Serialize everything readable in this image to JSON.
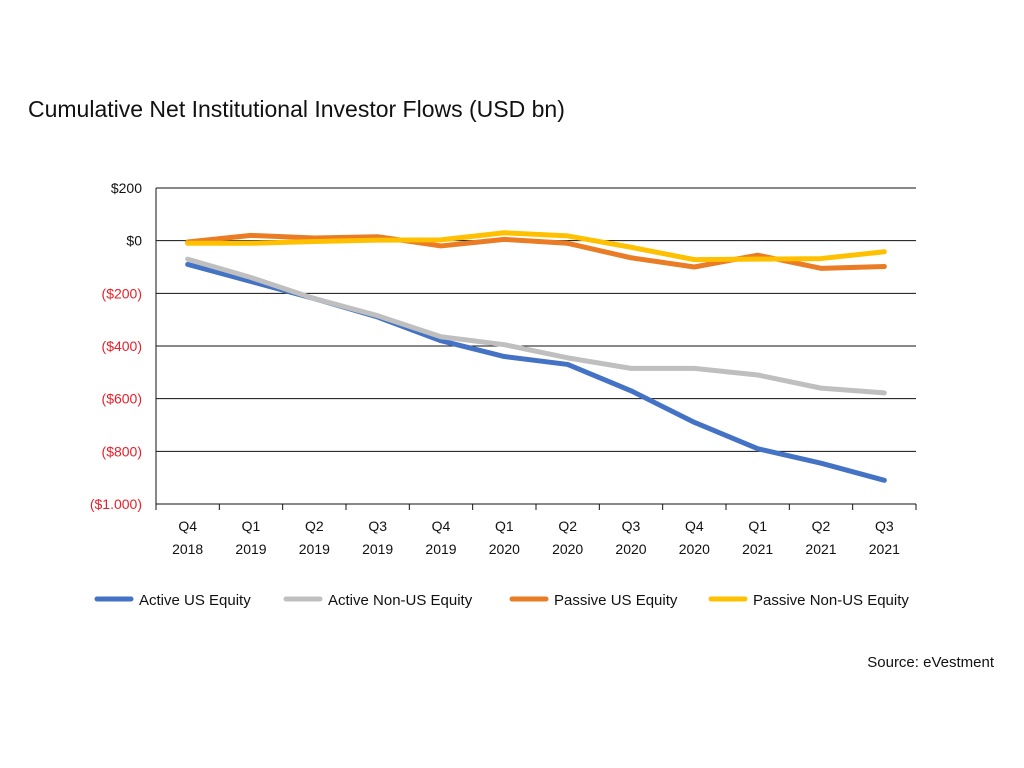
{
  "chart_data": {
    "type": "line",
    "title": "Cumulative Net Institutional Investor Flows (USD bn)",
    "source": "Source: eVestment",
    "categories": [
      [
        "Q4",
        "2018"
      ],
      [
        "Q1",
        "2019"
      ],
      [
        "Q2",
        "2019"
      ],
      [
        "Q3",
        "2019"
      ],
      [
        "Q4",
        "2019"
      ],
      [
        "Q1",
        "2020"
      ],
      [
        "Q2",
        "2020"
      ],
      [
        "Q3",
        "2020"
      ],
      [
        "Q4",
        "2020"
      ],
      [
        "Q1",
        "2021"
      ],
      [
        "Q2",
        "2021"
      ],
      [
        "Q3",
        "2021"
      ]
    ],
    "ylim": [
      -1000,
      200
    ],
    "yticks": [
      {
        "value": 200,
        "label": "$200"
      },
      {
        "value": 0,
        "label": "$0"
      },
      {
        "value": -200,
        "label": "($200)"
      },
      {
        "value": -400,
        "label": "($400)"
      },
      {
        "value": -600,
        "label": "($600)"
      },
      {
        "value": -800,
        "label": "($800)"
      },
      {
        "value": -1000,
        "label": "($1.000)"
      }
    ],
    "negative_tick_color": "#e8202a",
    "positive_tick_color": "#111111",
    "grid": true,
    "legend_position": "bottom",
    "series": [
      {
        "name": "Active US Equity",
        "color": "#4472c4",
        "values": [
          -90,
          -155,
          -220,
          -290,
          -380,
          -440,
          -470,
          -570,
          -690,
          -790,
          -845,
          -910
        ]
      },
      {
        "name": "Active Non-US Equity",
        "color": "#bfbfbf",
        "values": [
          -70,
          -140,
          -220,
          -285,
          -365,
          -395,
          -445,
          -485,
          -485,
          -510,
          -560,
          -578
        ]
      },
      {
        "name": "Passive US Equity",
        "color": "#e97c24",
        "values": [
          -5,
          20,
          10,
          15,
          -20,
          5,
          -10,
          -65,
          -100,
          -55,
          -105,
          -98
        ]
      },
      {
        "name": "Passive Non-US Equity",
        "color": "#ffc000",
        "values": [
          -10,
          -10,
          -3,
          2,
          3,
          30,
          18,
          -25,
          -72,
          -70,
          -68,
          -42
        ]
      }
    ]
  }
}
